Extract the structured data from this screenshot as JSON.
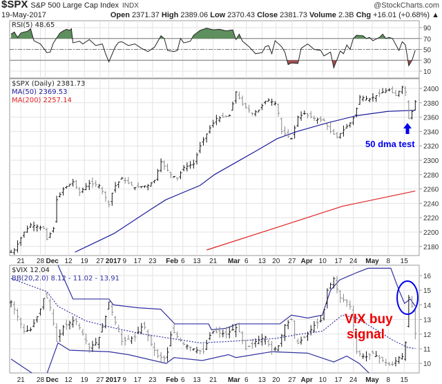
{
  "header": {
    "symbol": "$SPX",
    "name": "S&P 500 Large Cap Index",
    "exchange": "INDX",
    "brand": "@StockCharts.com",
    "date": "19-May-2017",
    "open_label": "Open",
    "open": "2371.37",
    "high_label": "High",
    "high": "2389.06",
    "low_label": "Low",
    "low": "2370.43",
    "close_label": "Close",
    "close": "2381.73",
    "volume_label": "Volume",
    "volume": "2.3B",
    "chg_label": "Chg",
    "chg": "+16.01 (+0.68%) ▲"
  },
  "legends": {
    "rsi": "RSI(5) 48.65",
    "spx": "$SPX (Daily) 2381.73",
    "ma50": "MA(50) 2369.53",
    "ma200": "MA(200) 2257.14",
    "vix": "$VIX 12.04",
    "bb": "BB(20,2.0) 8.12 - 11.02 - 13.91"
  },
  "annotations": {
    "dma_test": "50 dma test",
    "vix_buy_1": "VIX buy",
    "vix_buy_2": "signal"
  },
  "colors": {
    "ma50": "#1a1a9c",
    "ma200": "#e02020",
    "rsi_over": "#5e8f5e",
    "rsi_under": "#a05050",
    "annotation_blue": "#0000ee",
    "annotation_red": "#ee0000",
    "bb": "#3030a0"
  },
  "chart_data": [
    {
      "type": "line",
      "title": "RSI(5)",
      "yticks": [
        10,
        30,
        50,
        70,
        90
      ],
      "ylim": [
        0,
        100
      ],
      "levels": [
        30,
        50,
        70
      ],
      "points": [
        [
          0,
          78
        ],
        [
          1,
          82
        ],
        [
          2,
          72
        ],
        [
          3,
          80
        ],
        [
          4,
          82
        ],
        [
          5,
          83
        ],
        [
          6,
          88
        ],
        [
          7,
          66
        ],
        [
          9,
          60
        ],
        [
          11,
          44
        ],
        [
          12,
          45
        ],
        [
          13,
          62
        ],
        [
          15,
          80
        ],
        [
          16,
          84
        ],
        [
          17,
          87
        ],
        [
          18,
          85
        ],
        [
          18.5,
          88
        ],
        [
          19,
          62
        ],
        [
          21,
          65
        ],
        [
          22,
          60
        ],
        [
          24,
          68
        ],
        [
          26,
          57
        ],
        [
          28,
          60
        ],
        [
          29,
          42
        ],
        [
          30,
          27
        ],
        [
          32,
          55
        ],
        [
          33,
          63
        ],
        [
          34,
          64
        ],
        [
          36,
          57
        ],
        [
          38,
          60
        ],
        [
          40,
          52
        ],
        [
          42,
          46
        ],
        [
          44,
          54
        ],
        [
          46,
          75
        ],
        [
          47,
          70
        ],
        [
          48,
          48
        ],
        [
          50,
          46
        ],
        [
          51,
          48
        ],
        [
          52,
          70
        ],
        [
          53,
          62
        ],
        [
          55,
          65
        ],
        [
          56,
          76
        ],
        [
          58,
          85
        ],
        [
          60,
          89
        ],
        [
          62,
          86
        ],
        [
          64,
          87
        ],
        [
          66,
          84
        ],
        [
          68,
          86
        ],
        [
          69,
          68
        ],
        [
          70,
          78
        ],
        [
          71,
          65
        ],
        [
          73,
          55
        ],
        [
          75,
          42
        ],
        [
          77,
          44
        ],
        [
          78,
          55
        ],
        [
          79,
          57
        ],
        [
          80,
          42
        ],
        [
          81,
          66
        ],
        [
          83,
          55
        ],
        [
          84,
          45
        ],
        [
          85,
          22
        ],
        [
          86,
          25
        ],
        [
          88,
          24
        ],
        [
          89,
          52
        ],
        [
          91,
          60
        ],
        [
          93,
          50
        ],
        [
          95,
          48
        ],
        [
          96,
          38
        ],
        [
          98,
          45
        ],
        [
          99,
          16
        ],
        [
          101,
          47
        ],
        [
          102,
          42
        ],
        [
          103,
          58
        ],
        [
          104,
          50
        ],
        [
          105,
          70
        ],
        [
          106,
          76
        ],
        [
          108,
          75
        ],
        [
          109,
          70
        ],
        [
          110,
          72
        ],
        [
          111,
          66
        ],
        [
          113,
          72
        ],
        [
          114,
          78
        ],
        [
          115,
          70
        ],
        [
          116,
          72
        ],
        [
          117,
          70
        ],
        [
          119,
          48
        ],
        [
          120,
          64
        ],
        [
          121,
          58
        ],
        [
          122,
          20
        ],
        [
          123,
          30
        ],
        [
          124,
          48.65
        ]
      ]
    },
    {
      "type": "ohlc",
      "title": "$SPX (Daily)",
      "ylim": [
        2170,
        2410
      ],
      "yticks": [
        2180,
        2200,
        2220,
        2240,
        2260,
        2280,
        2300,
        2320,
        2340,
        2360,
        2380,
        2400
      ],
      "close_points": [
        [
          0,
          2172
        ],
        [
          1,
          2175
        ],
        [
          4,
          2200
        ],
        [
          6,
          2210
        ],
        [
          8,
          2208
        ],
        [
          10,
          2205
        ],
        [
          11,
          2190
        ],
        [
          13,
          2205
        ],
        [
          14,
          2245
        ],
        [
          16,
          2260
        ],
        [
          19,
          2270
        ],
        [
          21,
          2255
        ],
        [
          24,
          2268
        ],
        [
          27,
          2265
        ],
        [
          29,
          2248
        ],
        [
          30,
          2238
        ],
        [
          31.5,
          2262
        ],
        [
          34,
          2275
        ],
        [
          36,
          2268
        ],
        [
          38,
          2262
        ],
        [
          42,
          2265
        ],
        [
          44,
          2272
        ],
        [
          46,
          2298
        ],
        [
          49,
          2280
        ],
        [
          51,
          2275
        ],
        [
          53,
          2290
        ],
        [
          56,
          2295
        ],
        [
          58,
          2320
        ],
        [
          61,
          2345
        ],
        [
          63,
          2358
        ],
        [
          67,
          2362
        ],
        [
          69,
          2395
        ],
        [
          71,
          2378
        ],
        [
          74,
          2365
        ],
        [
          76,
          2370
        ],
        [
          78.5,
          2385
        ],
        [
          81.5,
          2378
        ],
        [
          83,
          2340
        ],
        [
          86,
          2330
        ],
        [
          88,
          2360
        ],
        [
          90,
          2365
        ],
        [
          93,
          2358
        ],
        [
          96,
          2355
        ],
        [
          98,
          2340
        ],
        [
          100,
          2332
        ],
        [
          102.5,
          2345
        ],
        [
          104.7,
          2355
        ],
        [
          106,
          2372
        ],
        [
          107,
          2388
        ],
        [
          110,
          2385
        ],
        [
          114,
          2395
        ],
        [
          116,
          2398
        ],
        [
          118,
          2390
        ],
        [
          120,
          2402
        ],
        [
          121,
          2395
        ],
        [
          122,
          2358
        ],
        [
          123,
          2368
        ],
        [
          124,
          2381.73
        ]
      ],
      "series": [
        {
          "name": "MA(50)",
          "points": [
            [
              19.6,
              2172
            ],
            [
              31.6,
              2198
            ],
            [
              43,
              2232
            ],
            [
              47.5,
              2245
            ],
            [
              58,
              2265
            ],
            [
              62.4,
              2280
            ],
            [
              69.4,
              2298
            ],
            [
              76,
              2315
            ],
            [
              81.6,
              2330
            ],
            [
              87.7,
              2340
            ],
            [
              97,
              2352
            ],
            [
              106,
              2362
            ],
            [
              115.6,
              2368
            ],
            [
              124,
              2369.53
            ]
          ]
        },
        {
          "name": "MA(200)",
          "points": [
            [
              60,
              2175
            ],
            [
              84,
              2210
            ],
            [
              101.7,
              2236
            ],
            [
              124,
              2257.14
            ]
          ]
        }
      ]
    },
    {
      "type": "ohlc",
      "title": "$VIX",
      "ylim": [
        9.3,
        16.7
      ],
      "yticks": [
        10,
        11,
        12,
        13,
        14,
        15,
        16
      ],
      "close_points": [
        [
          0,
          14.2
        ],
        [
          1,
          13.7
        ],
        [
          4,
          12.2
        ],
        [
          6,
          12.3
        ],
        [
          8.7,
          13.5
        ],
        [
          10.5,
          14.8
        ],
        [
          12.3,
          13.6
        ],
        [
          14,
          11.5
        ],
        [
          16,
          12.5
        ],
        [
          19.7,
          13.0
        ],
        [
          22,
          12.0
        ],
        [
          24,
          11.1
        ],
        [
          26.6,
          11.5
        ],
        [
          29,
          13.2
        ],
        [
          30,
          14.2
        ],
        [
          32,
          12.8
        ],
        [
          34,
          11.5
        ],
        [
          38,
          11.8
        ],
        [
          40.6,
          12.7
        ],
        [
          43,
          11.3
        ],
        [
          45,
          10.5
        ],
        [
          47.6,
          10.3
        ],
        [
          49.3,
          12.3
        ],
        [
          53,
          11.3
        ],
        [
          57,
          10.9
        ],
        [
          59,
          10.8
        ],
        [
          61.5,
          12.2
        ],
        [
          66,
          12.0
        ],
        [
          69.4,
          12.5
        ],
        [
          72,
          11.0
        ],
        [
          75,
          11.5
        ],
        [
          78,
          11.8
        ],
        [
          80,
          10.8
        ],
        [
          82,
          11.2
        ],
        [
          84,
          12.6
        ],
        [
          86,
          13.0
        ],
        [
          87.7,
          11.3
        ],
        [
          91,
          12.0
        ],
        [
          93,
          12.6
        ],
        [
          95.5,
          13.0
        ],
        [
          97,
          15.0
        ],
        [
          99,
          15.8
        ],
        [
          100.8,
          14.5
        ],
        [
          103,
          14.2
        ],
        [
          104.3,
          13.8
        ],
        [
          106,
          10.8
        ],
        [
          108.6,
          10.4
        ],
        [
          111,
          10.7
        ],
        [
          114,
          10.2
        ],
        [
          116.5,
          9.8
        ],
        [
          119,
          10.4
        ],
        [
          120.7,
          10.5
        ],
        [
          122,
          14.5
        ],
        [
          123,
          13.9
        ],
        [
          124,
          12.04
        ]
      ],
      "series": [
        {
          "name": "BB upper",
          "points": [
            [
              14,
              16.9
            ],
            [
              19,
              14.4
            ],
            [
              30,
              14.4
            ],
            [
              31.4,
              14.0
            ],
            [
              39,
              13.8
            ],
            [
              45.9,
              13.7
            ],
            [
              50.2,
              12.7
            ],
            [
              60.6,
              12.7
            ],
            [
              61.5,
              12.3
            ],
            [
              66,
              12.4
            ],
            [
              69.4,
              12.7
            ],
            [
              82.5,
              12.7
            ],
            [
              86,
              13.3
            ],
            [
              91,
              13.1
            ],
            [
              95.5,
              13.3
            ],
            [
              98,
              15.0
            ],
            [
              100.8,
              15.7
            ],
            [
              106,
              16.2
            ],
            [
              109.5,
              16.5
            ],
            [
              116.5,
              16.5
            ],
            [
              119,
              15.0
            ],
            [
              120.7,
              14.1
            ],
            [
              122.5,
              14.4
            ],
            [
              124,
              13.91
            ]
          ]
        },
        {
          "name": "BB middle",
          "points": [
            [
              0,
              15.8
            ],
            [
              11,
              14.9
            ],
            [
              14.4,
              13.9
            ],
            [
              23,
              12.9
            ],
            [
              32,
              12.4
            ],
            [
              40.6,
              12.0
            ],
            [
              58,
              11.4
            ],
            [
              66.7,
              11.5
            ],
            [
              81,
              11.7
            ],
            [
              88.6,
              12.0
            ],
            [
              95.5,
              12.2
            ],
            [
              101.6,
              13.3
            ],
            [
              106,
              13.1
            ],
            [
              112,
              12.3
            ],
            [
              117,
              11.6
            ],
            [
              121.6,
              11.1
            ],
            [
              124,
              11.02
            ]
          ]
        },
        {
          "name": "BB lower",
          "points": [
            [
              0,
              10.3
            ],
            [
              6.7,
              9.3
            ]
          ]
        },
        {
          "name": "BB lower 2",
          "points": [
            [
              11,
              9.3
            ],
            [
              14.4,
              11.4
            ],
            [
              18,
              10.9
            ],
            [
              30,
              10.8
            ],
            [
              36,
              10.6
            ],
            [
              47.6,
              10.0
            ],
            [
              50,
              10.4
            ],
            [
              58.7,
              10.2
            ],
            [
              66.7,
              10.6
            ],
            [
              69,
              10.4
            ],
            [
              80,
              10.8
            ],
            [
              91,
              10.7
            ],
            [
              96.3,
              10.3
            ],
            [
              99,
              10.1
            ],
            [
              103,
              10.5
            ],
            [
              106.8,
              10.0
            ],
            [
              110,
              9.3
            ]
          ]
        }
      ]
    }
  ],
  "xaxis": {
    "ticks": [
      [
        3,
        "21"
      ],
      [
        9,
        "28"
      ],
      [
        10.5,
        "Dec"
      ],
      [
        17.6,
        "12"
      ],
      [
        22.5,
        "19"
      ],
      [
        27.3,
        "27"
      ],
      [
        30,
        "2017"
      ],
      [
        34.7,
        "9"
      ],
      [
        38.8,
        "17"
      ],
      [
        43.4,
        "23"
      ],
      [
        49.4,
        "Feb"
      ],
      [
        52.7,
        "6"
      ],
      [
        57,
        "13"
      ],
      [
        62,
        "21"
      ],
      [
        68.4,
        "Mar"
      ],
      [
        72.2,
        "6"
      ],
      [
        77,
        "13"
      ],
      [
        81.3,
        "20"
      ],
      [
        86.2,
        "27"
      ],
      [
        90.7,
        "Apr"
      ],
      [
        95.6,
        "10"
      ],
      [
        100.4,
        "17"
      ],
      [
        105,
        "24"
      ],
      [
        110.8,
        "May"
      ],
      [
        115.7,
        "8"
      ],
      [
        120.6,
        "15"
      ]
    ],
    "bold": [
      "Dec",
      "2017",
      "Feb",
      "Mar",
      "Apr",
      "May"
    ]
  }
}
